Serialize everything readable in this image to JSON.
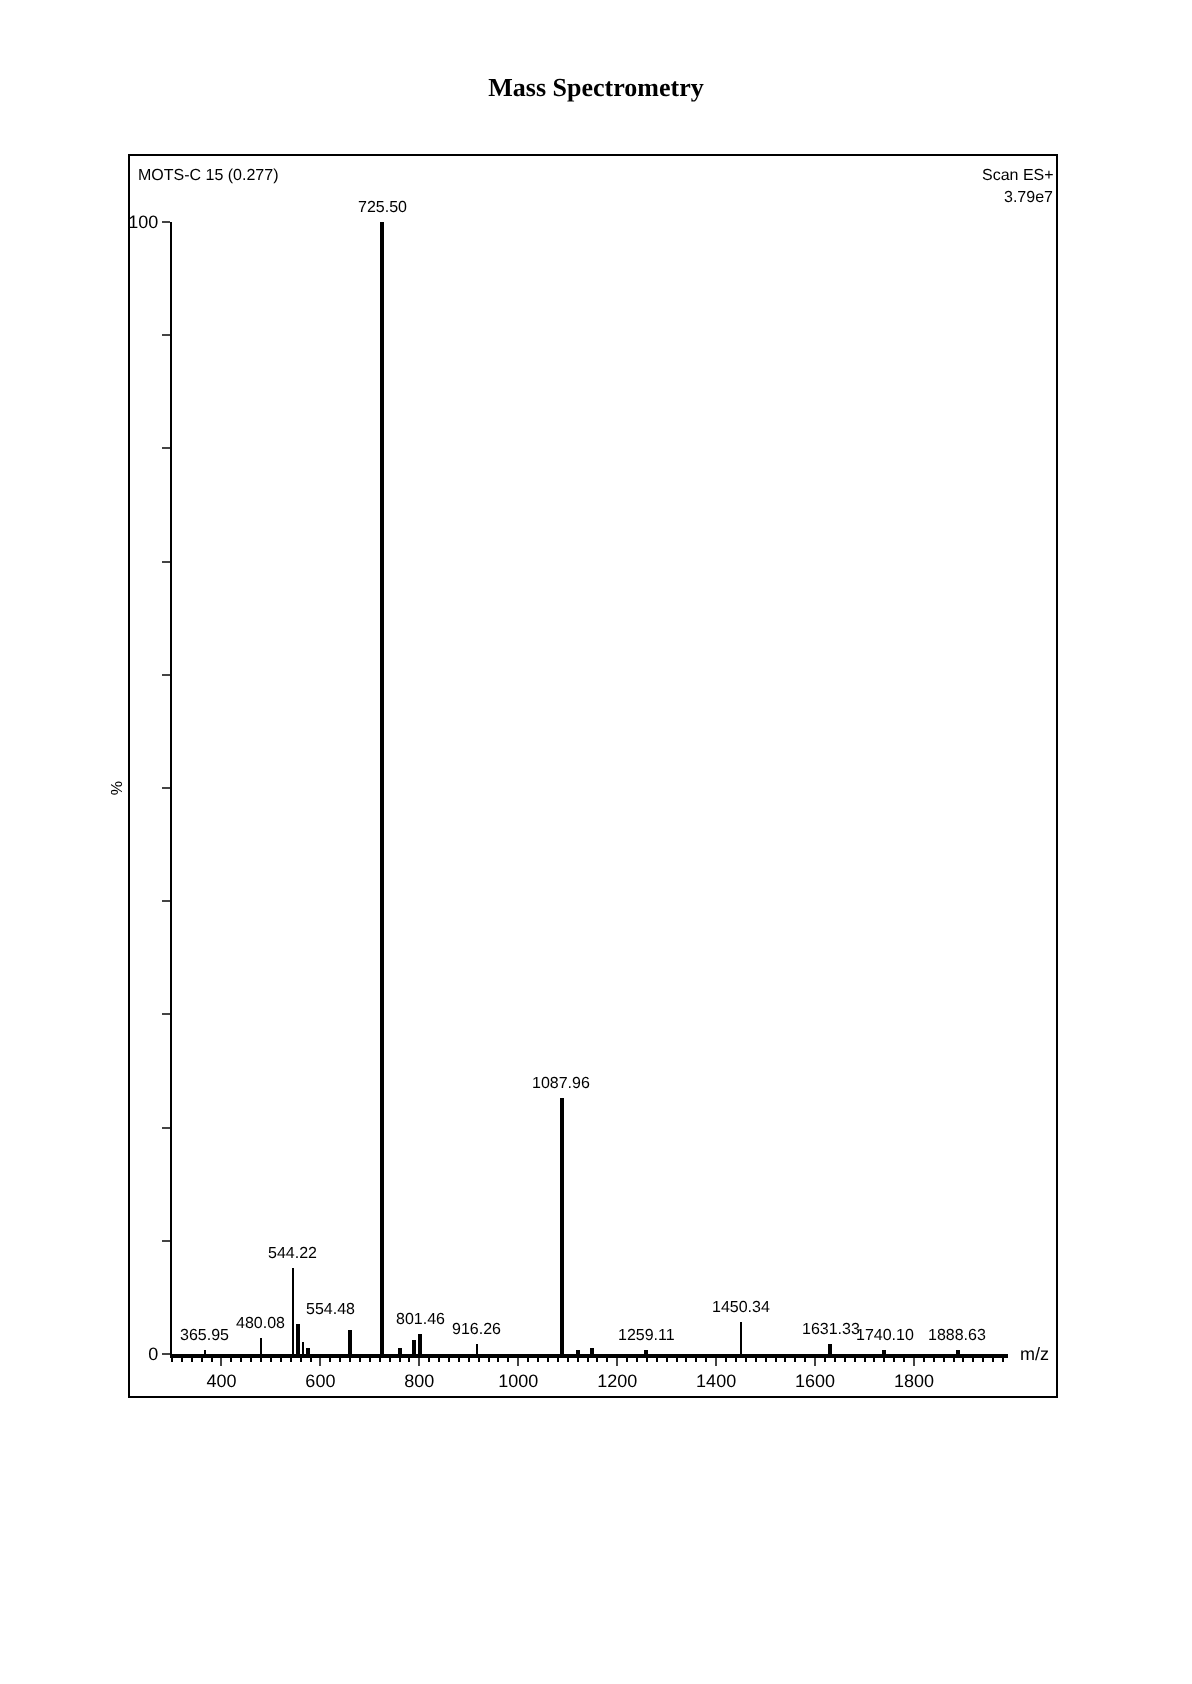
{
  "chart_data": {
    "type": "bar",
    "title": "Mass Spectrometry",
    "xlabel": "m/z",
    "ylabel": "%",
    "x": [
      365.95,
      480.08,
      544.22,
      554.48,
      565,
      575,
      660,
      725.5,
      760,
      790,
      801.46,
      916.26,
      1087.96,
      1120,
      1150,
      1259.11,
      1450.34,
      1631.33,
      1740.1,
      1888.63
    ],
    "values": [
      0.4,
      1.5,
      7.6,
      2.6,
      1.0,
      0.5,
      2.1,
      100,
      0.6,
      1.2,
      1.8,
      0.8,
      22.7,
      0.4,
      0.6,
      0.3,
      2.8,
      0.8,
      0.4,
      0.4
    ],
    "color": "#000000",
    "xlim": [
      300,
      1990
    ],
    "xticks": [
      400,
      600,
      800,
      1000,
      1200,
      1400,
      1600,
      1800
    ],
    "ylim": [
      0,
      100
    ],
    "yticks": [
      0,
      {
        "value": 10,
        "label": null
      },
      {
        "value": 20,
        "label": null
      },
      {
        "value": 30,
        "label": null
      },
      {
        "value": 40,
        "label": null
      },
      {
        "value": 50,
        "label": null
      },
      {
        "value": 60,
        "label": null
      },
      {
        "value": 70,
        "label": null
      },
      {
        "value": 80,
        "label": null
      },
      {
        "value": 90,
        "label": null
      },
      100
    ],
    "grid": false,
    "legend": false,
    "annotations": [
      "MOTS-C 15 (0.277)",
      "Scan ES+",
      "3.79e7",
      {
        "text": "365.95",
        "x": 365.95,
        "y": 0.4
      },
      {
        "text": "480.08",
        "x": 480.08,
        "y": 1.5
      },
      {
        "text": "544.22",
        "x": 544.22,
        "y": 7.6
      },
      {
        "text": "554.48",
        "x": 554.48,
        "y": 2.6
      },
      {
        "text": "725.50",
        "x": 725.5,
        "y": 100
      },
      {
        "text": "801.46",
        "x": 801.46,
        "y": 1.8
      },
      {
        "text": "916.26",
        "x": 916.26,
        "y": 0.8
      },
      {
        "text": "1087.96",
        "x": 1087.96,
        "y": 22.7
      },
      {
        "text": "1259.11",
        "x": 1259.11,
        "y": 0.3
      },
      {
        "text": "1450.34",
        "x": 1450.34,
        "y": 2.8
      },
      {
        "text": "1631.33",
        "x": 1631.33,
        "y": 0.8
      },
      {
        "text": "1740.10",
        "x": 1740.1,
        "y": 0.4
      },
      {
        "text": "1888.63",
        "x": 1888.63,
        "y": 0.4
      }
    ]
  }
}
